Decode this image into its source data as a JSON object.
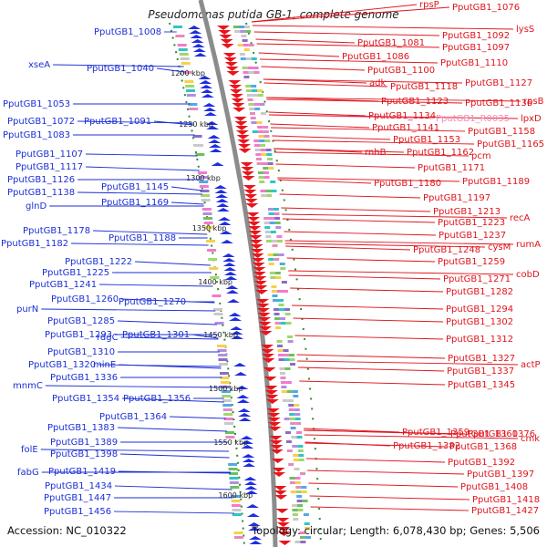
{
  "title": "Pseudomonas putida GB-1, complete genome",
  "accession": "Accession: NC_010322",
  "summary": "Topology: circular; Length: 6,078,430 bp; Genes: 5,506",
  "colors": {
    "minus_label": "#1b2fd6",
    "plus_label": "#e0141c",
    "rna_label": "#f58ab8",
    "forward_genes": "#e8161c",
    "reverse_genes": "#1f2ee0",
    "backbone": "#8c8c8c",
    "tick": "#2e8b2e"
  },
  "ticks": [
    "1200 kbp",
    "1250 kbp",
    "1300 kbp",
    "1350 kbp",
    "1400 kbp",
    "1450 kbp",
    "1500 kbp",
    "1550 kbp",
    "1600 kbp"
  ],
  "minus_labels": [
    "PputGB1_1008",
    "xseA",
    "PputGB1_1040",
    "PputGB1_1053",
    "PputGB1_1072",
    "PputGB1_1091",
    "PputGB1_1083",
    "PputGB1_1107",
    "PputGB1_1117",
    "PputGB1_1126",
    "PputGB1_1138",
    "PputGB1_1145",
    "glnD",
    "PputGB1_1169",
    "PputGB1_1178",
    "PputGB1_1188",
    "PputGB1_1182",
    "PputGB1_1222",
    "PputGB1_1225",
    "PputGB1_1241",
    "PputGB1_1260",
    "PputGB1_1270",
    "purN",
    "PputGB1_1285",
    "PputGB1_1293",
    "rdgC",
    "PputGB1_1301",
    "PputGB1_1310",
    "PputGB1_1320",
    "minE",
    "PputGB1_1336",
    "mnmC",
    "PputGB1_1354",
    "PputGB1_1356",
    "PputGB1_1364",
    "PputGB1_1383",
    "PputGB1_1389",
    "folE",
    "PputGB1_1398",
    "fabG",
    "PputGB1_1419",
    "PputGB1_1434",
    "PputGB1_1447",
    "PputGB1_1456"
  ],
  "plus_labels": [
    "rpsP",
    "PputGB1_1076",
    "lysS",
    "PputGB1_1092",
    "PputGB1_1081",
    "PputGB1_1097",
    "PputGB1_1086",
    "PputGB1_1110",
    "PputGB1_1100",
    "adk",
    "PputGB1_1118",
    "PputGB1_1127",
    "PputGB1_1123",
    "PputGB1_1136",
    "rpsB",
    "PputGB1_1134",
    "PputGB1_R0035",
    "lpxD",
    "PputGB1_1141",
    "PputGB1_1158",
    "PputGB1_1153",
    "PputGB1_1165",
    "rnhB",
    "PputGB1_1162",
    "pcm",
    "PputGB1_1171",
    "PputGB1_1180",
    "PputGB1_1189",
    "PputGB1_1197",
    "PputGB1_1213",
    "PputGB1_1223",
    "recA",
    "PputGB1_1237",
    "PputGB1_1248",
    "cysM",
    "rumA",
    "PputGB1_1259",
    "PputGB1_1271",
    "cobD",
    "PputGB1_1282",
    "PputGB1_1294",
    "PputGB1_1302",
    "PputGB1_1312",
    "PputGB1_1327",
    "actP",
    "PputGB1_1337",
    "PputGB1_1345",
    "PputGB1_1359",
    "PputGB1_1360",
    "cmk",
    "PputGB1_1368",
    "PputGB1_1376",
    "PputGB1_1382",
    "PputGB1_1392",
    "PputGB1_1397",
    "PputGB1_1408",
    "PputGB1_1418",
    "PputGB1_1427"
  ]
}
